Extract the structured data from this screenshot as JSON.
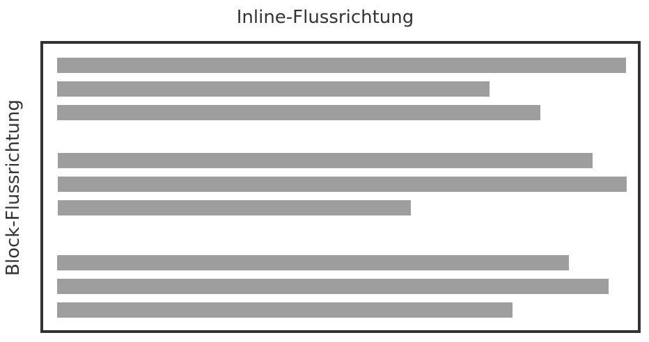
{
  "labels": {
    "inline_direction": "Inline-Flussrichtung",
    "block_direction": "Block-Flussrichtung"
  },
  "colors": {
    "frame": "#333333",
    "text_line": "#9e9e9e",
    "label_text": "#333333",
    "background": "#ffffff"
  },
  "paragraphs": [
    {
      "lines": [
        1.0,
        0.76,
        0.85
      ]
    },
    {
      "lines": [
        0.94,
        1.0,
        0.62
      ]
    },
    {
      "lines": [
        0.9,
        0.97,
        0.8
      ]
    }
  ]
}
